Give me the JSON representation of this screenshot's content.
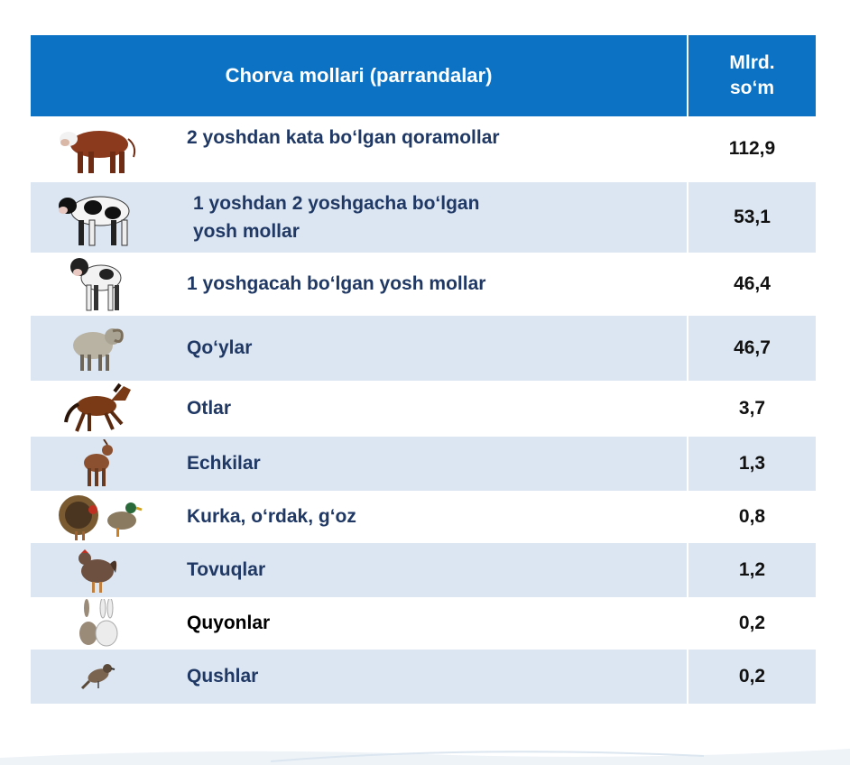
{
  "table": {
    "header": {
      "category": "Chorva mollari (parrandalar)",
      "unit_line1": "Mlrd.",
      "unit_line2": "so‘m"
    },
    "rows": [
      {
        "icon": "bull-icon",
        "label": "2 yoshdan kata bo‘lgan qoramollar",
        "value": "112,9"
      },
      {
        "icon": "cow-icon",
        "label_line1": "1 yoshdan 2 yoshgacha bo‘lgan",
        "label_line2": "yosh mollar",
        "value": "53,1"
      },
      {
        "icon": "calf-icon",
        "label": "1 yoshgacah bo‘lgan yosh mollar",
        "value": "46,4"
      },
      {
        "icon": "sheep-icon",
        "label": "Qo‘ylar",
        "value": "46,7"
      },
      {
        "icon": "horse-icon",
        "label": "Otlar",
        "value": "3,7"
      },
      {
        "icon": "goat-icon",
        "label": "Echkilar",
        "value": "1,3"
      },
      {
        "icon": "turkey-duck-icon",
        "label": "Kurka, o‘rdak, g‘oz",
        "value": "0,8"
      },
      {
        "icon": "chicken-icon",
        "label": "Tovuqlar",
        "value": "1,2"
      },
      {
        "icon": "rabbit-icon",
        "label": "Quyonlar",
        "value": "0,2"
      },
      {
        "icon": "bird-icon",
        "label": "Qushlar",
        "value": "0,2"
      }
    ]
  },
  "colors": {
    "header_bg": "#0b72c4",
    "alt_row_bg": "#dce6f2",
    "label_text": "#1f3864"
  }
}
